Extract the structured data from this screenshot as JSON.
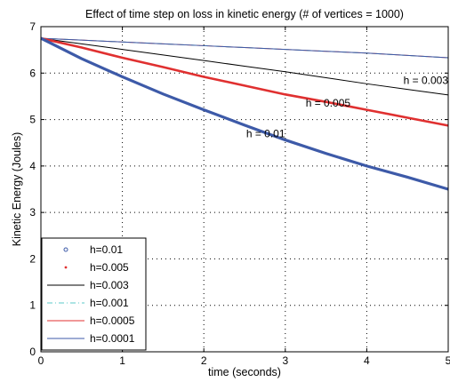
{
  "chart_data": {
    "type": "line",
    "title": "Effect of time step on loss in kinetic energy (# of vertices = 1000)",
    "xlabel": "time (seconds)",
    "ylabel": "Kinetic Energy (Joules)",
    "xlim": [
      0,
      5
    ],
    "ylim": [
      0,
      7
    ],
    "x_ticks": [
      "0",
      "1",
      "2",
      "3",
      "4",
      "5"
    ],
    "y_ticks": [
      "0",
      "1",
      "2",
      "3",
      "4",
      "5",
      "6",
      "7"
    ],
    "grid": true,
    "legend_position": "bottom-left",
    "x": [
      0,
      0.5,
      1,
      1.5,
      2,
      2.5,
      3,
      3.5,
      4,
      4.5,
      5
    ],
    "series": [
      {
        "name": "h=0.01",
        "style": "marker-circle",
        "color": "#3d5aa8",
        "values": [
          6.75,
          6.31,
          5.92,
          5.55,
          5.21,
          4.88,
          4.56,
          4.27,
          4.0,
          3.76,
          3.5
        ]
      },
      {
        "name": "h=0.005",
        "style": "marker-dot",
        "color": "#e03030",
        "values": [
          6.75,
          6.55,
          6.33,
          6.13,
          5.92,
          5.73,
          5.54,
          5.38,
          5.21,
          5.04,
          4.87
        ]
      },
      {
        "name": "h=0.003",
        "style": "line",
        "color": "#000000",
        "values": [
          6.75,
          6.63,
          6.51,
          6.39,
          6.27,
          6.15,
          6.03,
          5.9,
          5.77,
          5.65,
          5.53
        ]
      },
      {
        "name": "h=0.001",
        "style": "dashdot",
        "color": "#5bc8c8",
        "values": [
          6.75,
          6.71,
          6.67,
          6.63,
          6.59,
          6.55,
          6.51,
          6.47,
          6.43,
          6.38,
          6.33
        ]
      },
      {
        "name": "h=0.0005",
        "style": "line",
        "color": "#e03030",
        "values": [
          6.75,
          6.71,
          6.67,
          6.63,
          6.59,
          6.55,
          6.51,
          6.47,
          6.43,
          6.38,
          6.33
        ]
      },
      {
        "name": "h=0.0001",
        "style": "line",
        "color": "#3d5aa8",
        "values": [
          6.75,
          6.71,
          6.67,
          6.63,
          6.59,
          6.55,
          6.51,
          6.47,
          6.43,
          6.38,
          6.33
        ]
      }
    ],
    "annotations": [
      {
        "text": "h = 0.003",
        "x": 4.45,
        "y": 5.77
      },
      {
        "text": "h = 0.005",
        "x": 3.25,
        "y": 5.28
      },
      {
        "text": "h = 0.01",
        "x": 2.52,
        "y": 4.62
      }
    ]
  }
}
